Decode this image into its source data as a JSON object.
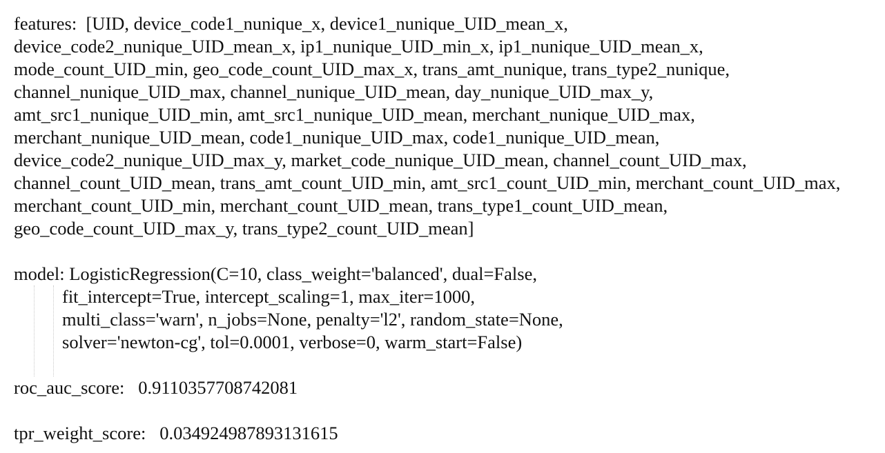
{
  "features": {
    "label": "features:",
    "lines": [
      "[UID, device_code1_nunique_x, device1_nunique_UID_mean_x,",
      "device_code2_nunique_UID_mean_x, ip1_nunique_UID_min_x, ip1_nunique_UID_mean_x,",
      "mode_count_UID_min, geo_code_count_UID_max_x, trans_amt_nunique, trans_type2_nunique,",
      "channel_nunique_UID_max, channel_nunique_UID_mean, day_nunique_UID_max_y,",
      "amt_src1_nunique_UID_min, amt_src1_nunique_UID_mean, merchant_nunique_UID_max,",
      "merchant_nunique_UID_mean, code1_nunique_UID_max, code1_nunique_UID_mean,",
      "device_code2_nunique_UID_max_y, market_code_nunique_UID_mean, channel_count_UID_max,",
      "channel_count_UID_mean, trans_amt_count_UID_min, amt_src1_count_UID_min, merchant_count_UID_max,",
      "merchant_count_UID_min, merchant_count_UID_mean, trans_type1_count_UID_mean,",
      "geo_code_count_UID_max_y, trans_type2_count_UID_mean]"
    ]
  },
  "model": {
    "label": "model:",
    "lines": [
      "LogisticRegression(C=10, class_weight='balanced', dual=False,",
      "fit_intercept=True, intercept_scaling=1, max_iter=1000,",
      "multi_class='warn', n_jobs=None, penalty='l2', random_state=None,",
      "solver='newton-cg', tol=0.0001, verbose=0, warm_start=False)"
    ]
  },
  "roc_auc": {
    "label": "roc_auc_score:",
    "value": "0.9110357708742081"
  },
  "tpr_weight": {
    "label": "tpr_weight_score:",
    "value": "0.034924987893131615"
  }
}
